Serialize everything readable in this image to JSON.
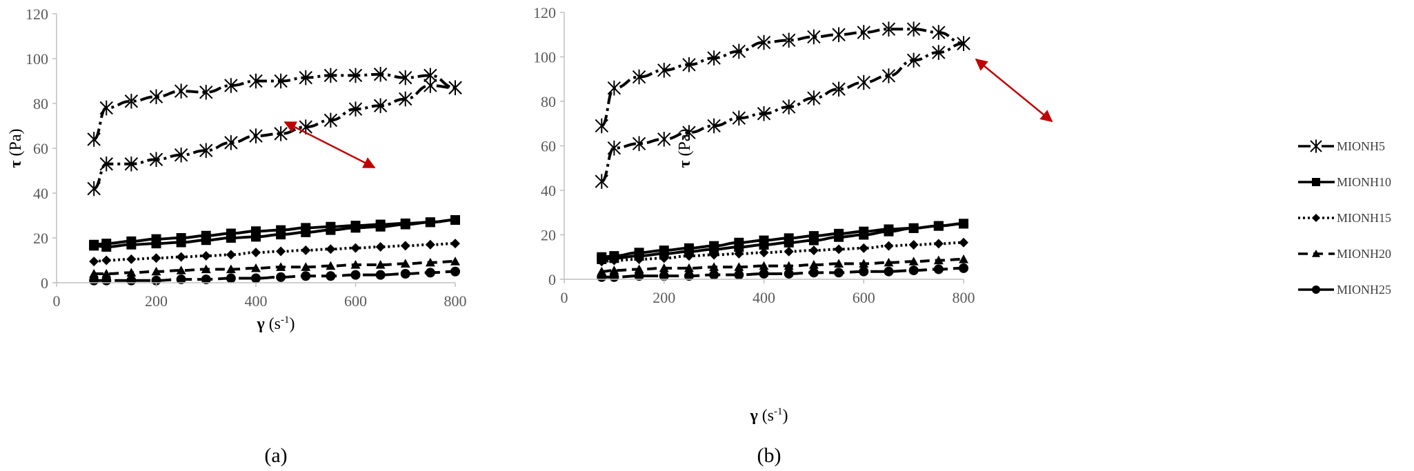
{
  "figure": {
    "captions": [
      "(a)",
      "(b)"
    ],
    "arrow_color": "#c00000",
    "line_color": "#000000",
    "axis_color": "#bfbfbf",
    "tick_color": "#595959"
  },
  "legend": {
    "items": [
      {
        "label": "MIONH5",
        "marker": "asterisk",
        "dash": "dash-dot"
      },
      {
        "label": "MIONH10",
        "marker": "square",
        "dash": "solid"
      },
      {
        "label": "MIONH15",
        "marker": "diamond",
        "dash": "dotted"
      },
      {
        "label": "MIONH20",
        "marker": "triangle",
        "dash": "dash"
      },
      {
        "label": "MIONH25",
        "marker": "circle",
        "dash": "long-dash"
      }
    ]
  },
  "chart_data": [
    {
      "type": "line",
      "panel": "(a)",
      "title": "",
      "xlabel": "γ (s-1)",
      "xlabel_symbol": "γ",
      "xlabel_unit": "(s",
      "xlabel_sup": "-1",
      "xlabel_close": ")",
      "ylabel": "τ (Pa)",
      "ylabel_symbol": "τ",
      "ylabel_unit": "(Pa)",
      "xlim": [
        0,
        800
      ],
      "ylim": [
        0,
        120
      ],
      "xticks": [
        0,
        200,
        400,
        600,
        800
      ],
      "yticks": [
        0,
        20,
        40,
        60,
        80,
        100,
        120
      ],
      "grid": false,
      "annotation": "red double-headed arrow between up and down curves of MIONH5 (~x 325,y 85 to ~x 460,y 68)",
      "series": [
        {
          "name": "MIONH5 (up)",
          "x": [
            75,
            100,
            150,
            200,
            250,
            300,
            350,
            400,
            450,
            500,
            550,
            600,
            650,
            700,
            750,
            800
          ],
          "y": [
            64,
            78,
            81,
            83,
            85.5,
            85,
            88,
            90,
            90,
            91.5,
            92.5,
            92.5,
            93,
            91.5,
            92.5,
            87
          ]
        },
        {
          "name": "MIONH5 (down)",
          "x": [
            75,
            100,
            150,
            200,
            250,
            300,
            350,
            400,
            450,
            500,
            550,
            600,
            650,
            700,
            750,
            800
          ],
          "y": [
            42,
            53,
            53,
            55,
            57,
            59,
            62.5,
            65.5,
            66.5,
            69.5,
            72.5,
            77.5,
            79,
            82,
            88,
            87
          ]
        },
        {
          "name": "MIONH10 (up)",
          "x": [
            75,
            100,
            150,
            200,
            250,
            300,
            350,
            400,
            450,
            500,
            550,
            600,
            650,
            700,
            750,
            800
          ],
          "y": [
            17,
            17.5,
            18.5,
            19.5,
            20,
            21,
            22,
            23,
            23.5,
            24.5,
            25,
            25.5,
            26,
            26.5,
            27,
            28
          ]
        },
        {
          "name": "MIONH10 (down)",
          "x": [
            75,
            100,
            150,
            200,
            250,
            300,
            350,
            400,
            450,
            500,
            550,
            600,
            650,
            700,
            750,
            800
          ],
          "y": [
            16.5,
            16,
            17,
            17.5,
            18,
            19,
            20,
            20.5,
            21.5,
            22.5,
            23.5,
            24.5,
            25,
            26,
            27,
            28
          ]
        },
        {
          "name": "MIONH15",
          "x": [
            75,
            100,
            150,
            200,
            250,
            300,
            350,
            400,
            450,
            500,
            550,
            600,
            650,
            700,
            750,
            800
          ],
          "y": [
            9.5,
            10,
            10.5,
            11,
            11.5,
            12,
            12.5,
            13.5,
            14,
            14.5,
            15,
            15.5,
            16,
            16.5,
            17,
            17.5
          ]
        },
        {
          "name": "MIONH20",
          "x": [
            75,
            100,
            150,
            200,
            250,
            300,
            350,
            400,
            450,
            500,
            550,
            600,
            650,
            700,
            750,
            800
          ],
          "y": [
            4,
            4,
            4.5,
            5,
            5.5,
            6,
            6,
            6.5,
            7,
            7,
            7.5,
            8,
            8,
            8.5,
            9,
            9.5
          ]
        },
        {
          "name": "MIONH25",
          "x": [
            75,
            100,
            150,
            200,
            250,
            300,
            350,
            400,
            450,
            500,
            550,
            600,
            650,
            700,
            750,
            800
          ],
          "y": [
            1,
            1,
            1,
            1,
            1.5,
            1.5,
            2,
            2,
            2.5,
            3,
            3,
            3.5,
            3.5,
            4,
            4.5,
            5
          ]
        }
      ]
    },
    {
      "type": "line",
      "panel": "(b)",
      "title": "",
      "xlabel": "γ (s-1)",
      "xlabel_symbol": "γ",
      "xlabel_unit": "(s",
      "xlabel_sup": "-1",
      "xlabel_close": ")",
      "ylabel": "τ (Pa)",
      "ylabel_symbol": "τ",
      "ylabel_unit": "(Pa)",
      "xlim": [
        0,
        800
      ],
      "ylim": [
        0,
        120
      ],
      "xticks": [
        0,
        200,
        400,
        600,
        800
      ],
      "yticks": [
        0,
        20,
        40,
        60,
        80,
        100,
        120
      ],
      "grid": false,
      "annotation": "red double-headed arrow between up and down curves of MIONH5 (~x 370,y 104 to ~x 490,y 82)",
      "series": [
        {
          "name": "MIONH5 (up)",
          "x": [
            75,
            100,
            150,
            200,
            250,
            300,
            350,
            400,
            450,
            500,
            550,
            600,
            650,
            700,
            750,
            800
          ],
          "y": [
            69,
            86,
            91,
            94,
            96.5,
            99.5,
            102.5,
            106.5,
            107.5,
            109,
            110,
            111,
            112.5,
            112.5,
            111,
            106
          ]
        },
        {
          "name": "MIONH5 (down)",
          "x": [
            75,
            100,
            150,
            200,
            250,
            300,
            350,
            400,
            450,
            500,
            550,
            600,
            650,
            700,
            750,
            800
          ],
          "y": [
            44,
            59,
            61,
            63,
            66,
            69,
            72.5,
            74.5,
            77.5,
            81.5,
            85.5,
            88.5,
            91.5,
            98.5,
            102,
            106
          ]
        },
        {
          "name": "MIONH10 (up)",
          "x": [
            75,
            100,
            150,
            200,
            250,
            300,
            350,
            400,
            450,
            500,
            550,
            600,
            650,
            700,
            750,
            800
          ],
          "y": [
            10,
            10.5,
            12,
            13,
            14,
            15,
            16.5,
            17.5,
            18.5,
            19.5,
            20.5,
            21.5,
            22.5,
            23,
            24,
            25
          ]
        },
        {
          "name": "MIONH10 (down)",
          "x": [
            75,
            100,
            150,
            200,
            250,
            300,
            350,
            400,
            450,
            500,
            550,
            600,
            650,
            700,
            750,
            800
          ],
          "y": [
            9,
            9.5,
            10.5,
            11.5,
            12.5,
            13.5,
            14.5,
            15.5,
            16.5,
            17.5,
            19,
            20,
            21.5,
            23,
            24,
            25
          ]
        },
        {
          "name": "MIONH15",
          "x": [
            75,
            100,
            150,
            200,
            250,
            300,
            350,
            400,
            450,
            500,
            550,
            600,
            650,
            700,
            750,
            800
          ],
          "y": [
            8,
            8.5,
            9,
            9.5,
            10.5,
            11,
            11.5,
            12,
            12.5,
            13,
            13.5,
            14,
            15,
            15.5,
            16,
            16.5
          ]
        },
        {
          "name": "MIONH20",
          "x": [
            75,
            100,
            150,
            200,
            250,
            300,
            350,
            400,
            450,
            500,
            550,
            600,
            650,
            700,
            750,
            800
          ],
          "y": [
            3.5,
            4,
            4.5,
            5,
            5,
            5.5,
            5.5,
            6,
            6,
            6.5,
            7,
            7,
            7.5,
            8,
            8.5,
            9
          ]
        },
        {
          "name": "MIONH25",
          "x": [
            75,
            100,
            150,
            200,
            250,
            300,
            350,
            400,
            450,
            500,
            550,
            600,
            650,
            700,
            750,
            800
          ],
          "y": [
            1,
            1,
            1.5,
            1.5,
            1.5,
            2,
            2,
            2.5,
            2.5,
            3,
            3,
            3.5,
            3.5,
            4,
            4.5,
            5
          ]
        }
      ]
    }
  ]
}
